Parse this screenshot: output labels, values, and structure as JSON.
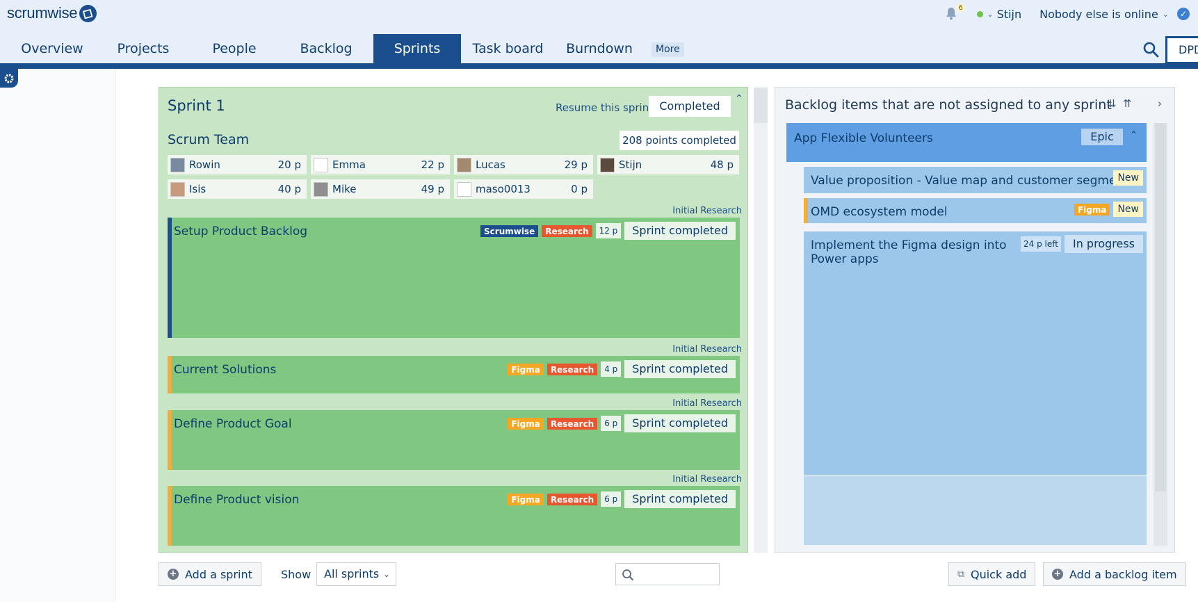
{
  "header": {
    "logo_text": "scrumwise",
    "notifications_count": "6",
    "user_name": "Stijn",
    "online_status": "Nobody else is online"
  },
  "nav": {
    "items": [
      "Overview",
      "Projects",
      "People",
      "Backlog",
      "Sprints",
      "Task board",
      "Burndown"
    ],
    "more_label": "More",
    "active": "Sprints",
    "search_value": "DPD"
  },
  "sprint": {
    "title": "Sprint 1",
    "resume_label": "Resume this sprint",
    "status_label": "Completed",
    "team_title": "Scrum Team",
    "points_completed": "208 points completed",
    "members": [
      {
        "name": "Rowin",
        "points": "20 p"
      },
      {
        "name": "Emma",
        "points": "22 p"
      },
      {
        "name": "Lucas",
        "points": "29 p"
      },
      {
        "name": "Stijn",
        "points": "48 p"
      },
      {
        "name": "Isis",
        "points": "40 p"
      },
      {
        "name": "Mike",
        "points": "49 p"
      },
      {
        "name": "maso0013",
        "points": "0 p"
      }
    ],
    "items": [
      {
        "group": "Initial Research",
        "title": "Setup Product Backlog",
        "tags": [
          "Scrumwise",
          "Research"
        ],
        "points": "12 p",
        "status": "Sprint completed"
      },
      {
        "group": "Initial Research",
        "title": "Current Solutions",
        "tags": [
          "Figma",
          "Research"
        ],
        "points": "4 p",
        "status": "Sprint completed"
      },
      {
        "group": "Initial Research",
        "title": "Define Product Goal",
        "tags": [
          "Figma",
          "Research"
        ],
        "points": "6 p",
        "status": "Sprint completed"
      },
      {
        "group": "Initial Research",
        "title": "Define Product vision",
        "tags": [
          "Figma",
          "Research"
        ],
        "points": "6 p",
        "status": "Sprint completed"
      }
    ]
  },
  "backlog": {
    "title": "Backlog items that are not assigned to any sprint",
    "epic": {
      "title": "App Flexible Volunteers",
      "tag": "Epic"
    },
    "items": [
      {
        "title": "Value proposition - Value map and customer segment",
        "badge": "New"
      },
      {
        "title": "OMD ecosystem model",
        "tag": "Figma",
        "badge": "New"
      },
      {
        "title": "Implement the Figma design into Power apps",
        "left": "24 p left",
        "status": "In progress"
      }
    ]
  },
  "bottom": {
    "add_sprint": "Add a sprint",
    "show_label": "Show",
    "show_value": "All sprints",
    "quick_add": "Quick add",
    "add_backlog_item": "Add a backlog item"
  },
  "colors": {
    "brand_blue": "#1b4e8c",
    "sprint_green": "#80c782",
    "backlog_blue": "#9cc6ea",
    "research_tag": "#e8562f",
    "figma_tag": "#f5a623"
  }
}
